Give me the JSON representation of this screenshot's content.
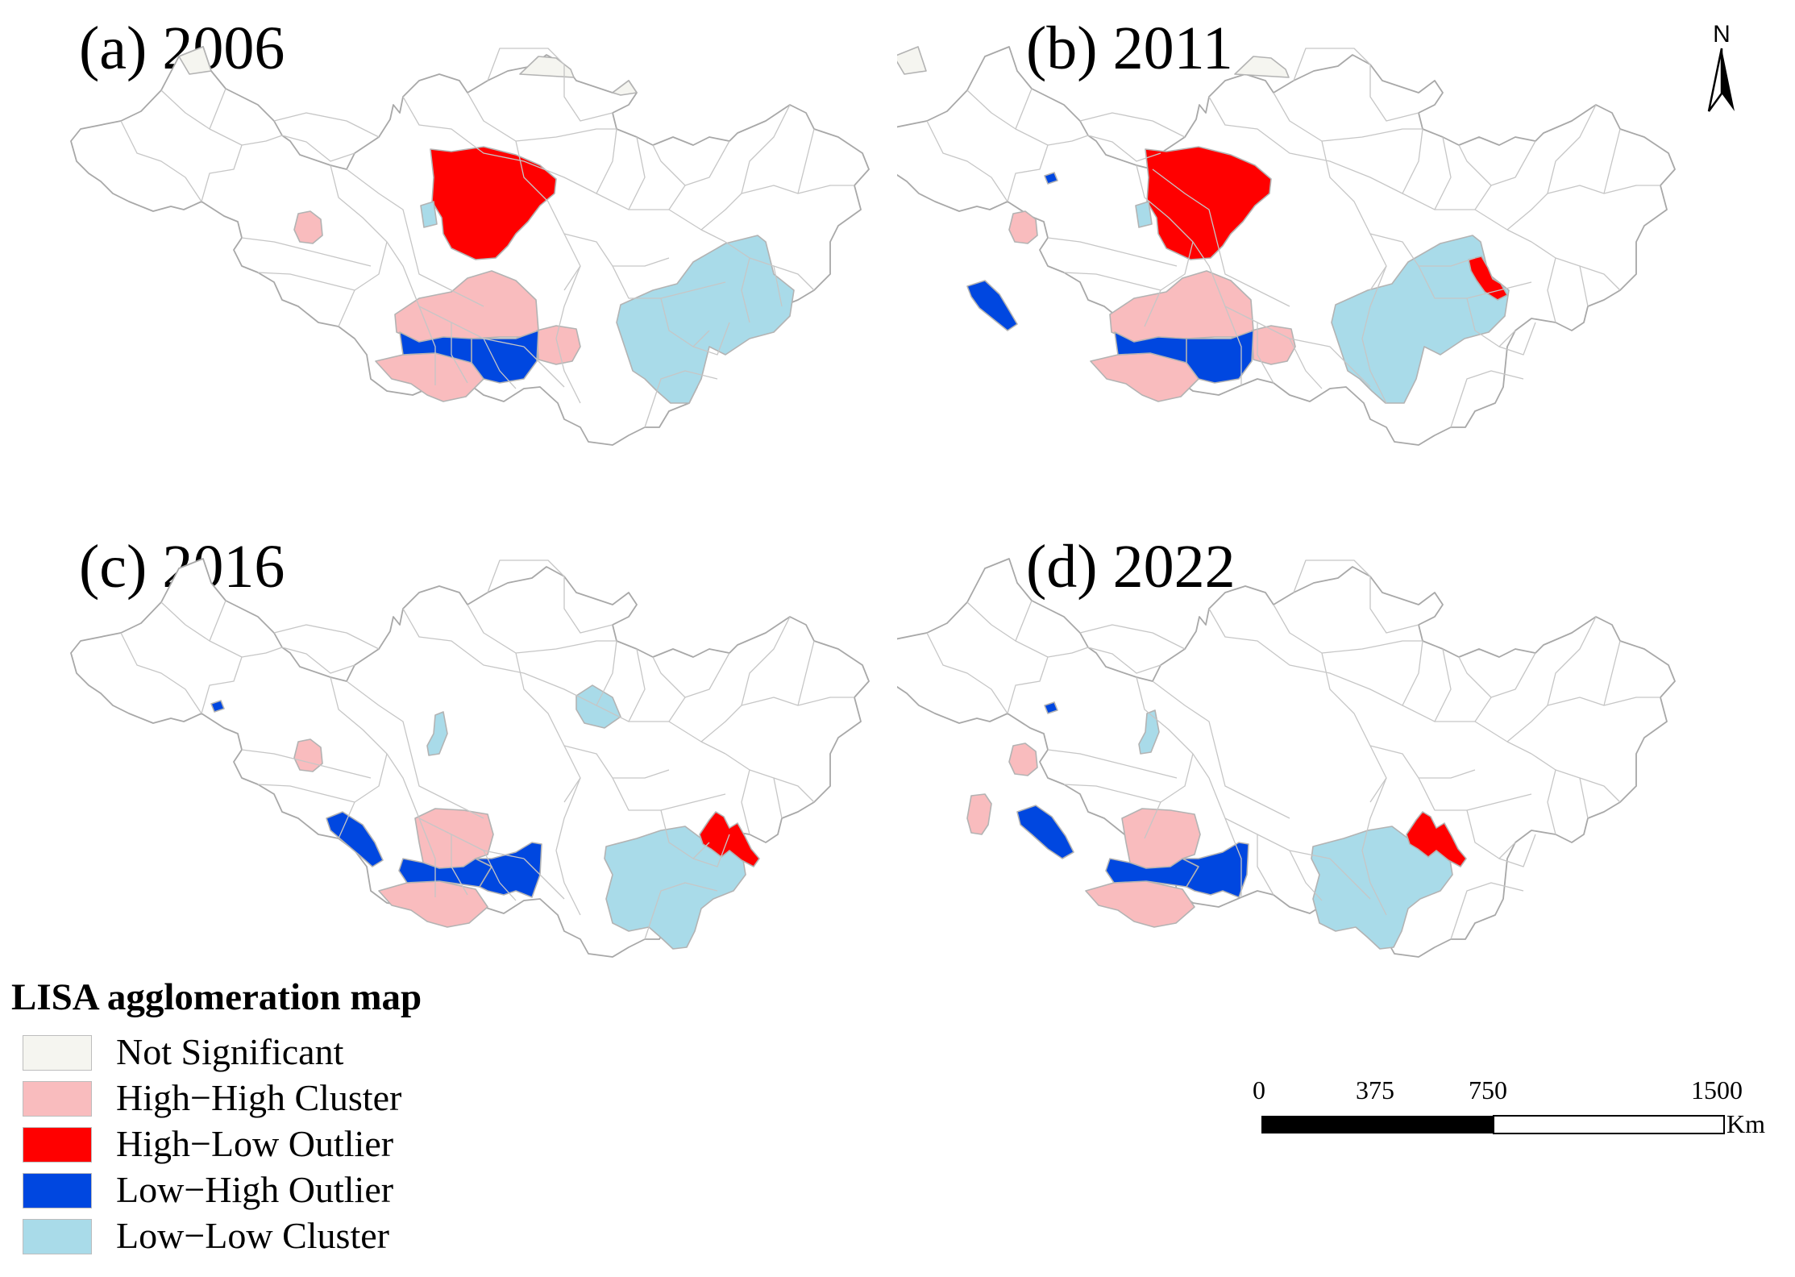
{
  "figure": {
    "panels": [
      {
        "label": "(a) 2006"
      },
      {
        "label": "(b) 2011"
      },
      {
        "label": "(c) 2016"
      },
      {
        "label": "(d) 2022"
      }
    ],
    "legend": {
      "title": "LISA agglomeration map",
      "items": [
        {
          "label": "Not Significant",
          "color": "#f5f5f0"
        },
        {
          "label": "High−High Cluster",
          "color": "#f9bcbe"
        },
        {
          "label": "High−Low Outlier",
          "color": "#ff0000"
        },
        {
          "label": "Low−High Outlier",
          "color": "#0047e0"
        },
        {
          "label": "Low−Low Cluster",
          "color": "#a9dbe9"
        }
      ]
    },
    "scale_bar": {
      "ticks": [
        "0",
        "375",
        "750",
        "1500"
      ],
      "unit": "Km"
    },
    "north_arrow": {
      "label": "N",
      "icon": "north-arrow-icon"
    }
  },
  "colors": {
    "not_significant": "#f5f5f0",
    "high_high": "#f9bcbe",
    "high_low": "#ff0000",
    "low_high": "#0047e0",
    "low_low": "#a9dbe9",
    "boundary": "#b3b3b3",
    "non_study_area": "#ffffff"
  }
}
